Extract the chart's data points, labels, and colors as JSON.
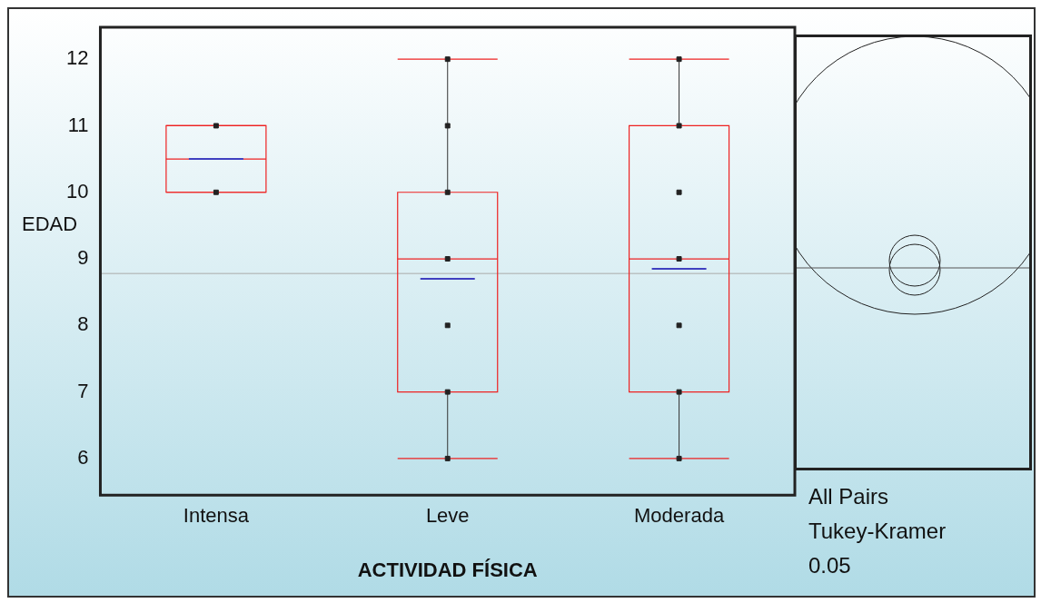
{
  "chart_data": {
    "type": "box",
    "xlabel": "ACTIVIDAD FÍSICA",
    "ylabel": "EDAD",
    "categories": [
      "Intensa",
      "Leve",
      "Moderada"
    ],
    "boxes": [
      {
        "low": 10,
        "q1": 10,
        "median": 10.5,
        "q3": 11,
        "high": 11,
        "mean": 10.5
      },
      {
        "low": 6,
        "q1": 7,
        "median": 9,
        "q3": 10,
        "high": 12,
        "mean": 8.7
      },
      {
        "low": 6,
        "q1": 7,
        "median": 9,
        "q3": 11,
        "high": 12,
        "mean": 8.85
      }
    ],
    "color": "#ee2222",
    "series": [
      {
        "type": "scatter",
        "color": "#222222",
        "x": [
          "Intensa",
          "Intensa",
          "Leve",
          "Leve",
          "Leve",
          "Leve",
          "Leve",
          "Leve",
          "Leve",
          "Moderada",
          "Moderada",
          "Moderada",
          "Moderada",
          "Moderada",
          "Moderada",
          "Moderada"
        ],
        "values": [
          10,
          11,
          6,
          7,
          8,
          9,
          10,
          11,
          12,
          6,
          7,
          8,
          9,
          10,
          11,
          12
        ]
      }
    ],
    "marker": "square",
    "ylim": [
      5.45,
      12.48
    ],
    "yticks": [
      6,
      7,
      8,
      9,
      10,
      11,
      12
    ],
    "ref_lines": [
      {
        "axis": "y",
        "value": 8.78,
        "color": "#aaaaaa"
      }
    ],
    "grid": false,
    "legend": false,
    "annotations": [
      "All Pairs",
      "Tukey-Kramer",
      "0.05"
    ]
  }
}
